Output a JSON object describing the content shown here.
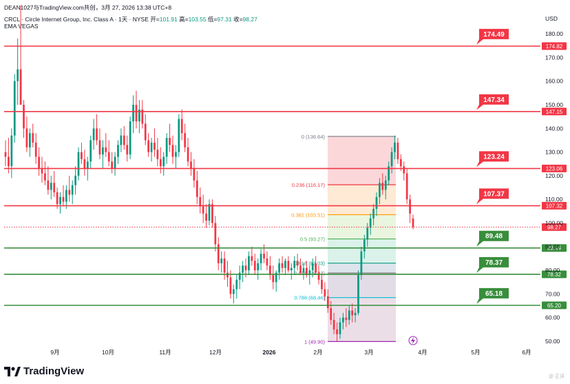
{
  "header": {
    "byline": "DEAN1027与TradingView.com共创，3月 27, 2026 13:38 UTC+8",
    "symbol": "CRCL · Circle Internet Group, Inc. Class A · 1天 · NYSE",
    "open_label": "开=",
    "open": "101.91",
    "high_label": "高=",
    "high": "103.55",
    "low_label": "低=",
    "low": "97.31",
    "close_label": "收=",
    "close": "98.27",
    "indicator": "EMA VEGAS",
    "currency": "USD"
  },
  "footer": {
    "brand": "TradingView",
    "watermark": "@ 正评"
  },
  "colors": {
    "resistance": "#f23645",
    "support": "#388e3c",
    "up": "#089981",
    "down": "#f23645",
    "price_line": "#f23645",
    "axis_text": "#131722"
  },
  "chart_data": {
    "type": "candlestick",
    "y_axis": {
      "range": [
        47,
        192
      ],
      "ticks": [
        "50.00",
        "60.00",
        "70.00",
        "80.00",
        "90.00",
        "100.00",
        "110.00",
        "120.00",
        "130.00",
        "140.00",
        "150.00",
        "160.00",
        "170.00",
        "180.00"
      ]
    },
    "x_axis": {
      "ticks": [
        "9月",
        "10月",
        "11月",
        "12月",
        "2026",
        "2月",
        "3月",
        "4月",
        "5月",
        "6月"
      ]
    },
    "current_price": {
      "value": 98.27,
      "label": "98.27"
    },
    "resistance_levels": [
      {
        "value": 174.82,
        "axis_label": "174.82",
        "callout": "174.49"
      },
      {
        "value": 147.15,
        "axis_label": "147.15",
        "callout": "147.34"
      },
      {
        "value": 123.06,
        "axis_label": "123.06",
        "callout": "123.24"
      },
      {
        "value": 107.32,
        "axis_label": "107.32",
        "callout": "107.37"
      }
    ],
    "support_levels": [
      {
        "value": 89.44,
        "axis_label": "89.44",
        "callout": "89.48"
      },
      {
        "value": 78.32,
        "axis_label": "78.32",
        "callout": "78.37"
      },
      {
        "value": 65.2,
        "axis_label": "65.20",
        "callout": "65.18"
      }
    ],
    "fibonacci": {
      "from_date": "2026-02-05",
      "to_date": "2026-03-19",
      "levels": [
        {
          "label": "0 (136.64)",
          "value": 136.64,
          "color": "#787b86",
          "fill": "#f9c9cd"
        },
        {
          "label": "0.236 (116.17)",
          "value": 116.17,
          "color": "#f23645",
          "fill": "#fde3c7"
        },
        {
          "label": "0.382 (103.51)",
          "value": 103.51,
          "color": "#ff9800",
          "fill": "#e1f1d3"
        },
        {
          "label": "0.5 (93.27)",
          "value": 93.27,
          "color": "#4caf50",
          "fill": "#cdeee3"
        },
        {
          "label": "0.618 (83.03)",
          "value": 83.03,
          "color": "#089981",
          "fill": "#d3dbe6"
        },
        {
          "label": "0.666 (78.87)",
          "value": 78.87,
          "color": "#7a7a7a",
          "fill": "#d8d0df"
        },
        {
          "label": "0.786 (68.46)",
          "value": 68.46,
          "color": "#00bcd4",
          "fill": "#e6d3df"
        },
        {
          "label": "1 (49.90)",
          "value": 49.9,
          "color": "#9c27b0",
          "fill": "none"
        }
      ]
    },
    "candles_ohlc": [
      [
        130,
        135,
        124,
        128
      ],
      [
        128,
        136,
        121,
        124
      ],
      [
        124,
        140,
        119,
        137
      ],
      [
        137,
        163,
        134,
        160
      ],
      [
        160,
        178,
        150,
        165
      ],
      [
        165,
        192,
        158,
        150
      ],
      [
        150,
        152,
        136,
        140
      ],
      [
        140,
        145,
        130,
        132
      ],
      [
        132,
        140,
        128,
        138
      ],
      [
        138,
        142,
        132,
        134
      ],
      [
        134,
        138,
        125,
        128
      ],
      [
        128,
        132,
        120,
        123
      ],
      [
        123,
        128,
        117,
        121
      ],
      [
        121,
        126,
        116,
        118
      ],
      [
        118,
        124,
        112,
        114
      ],
      [
        114,
        120,
        110,
        117
      ],
      [
        117,
        122,
        111,
        113
      ],
      [
        113,
        115,
        106,
        108
      ],
      [
        108,
        113,
        104,
        111
      ],
      [
        111,
        116,
        107,
        109
      ],
      [
        109,
        116,
        106,
        114
      ],
      [
        114,
        120,
        109,
        112
      ],
      [
        112,
        118,
        108,
        116
      ],
      [
        116,
        124,
        112,
        120
      ],
      [
        120,
        132,
        118,
        130
      ],
      [
        130,
        134,
        125,
        127
      ],
      [
        127,
        131,
        120,
        123
      ],
      [
        123,
        128,
        118,
        126
      ],
      [
        126,
        137,
        123,
        135
      ],
      [
        135,
        144,
        131,
        140
      ],
      [
        140,
        146,
        133,
        135
      ],
      [
        135,
        140,
        127,
        129
      ],
      [
        129,
        135,
        123,
        132
      ],
      [
        132,
        138,
        128,
        130
      ],
      [
        130,
        135,
        124,
        126
      ],
      [
        126,
        130,
        121,
        123
      ],
      [
        123,
        130,
        120,
        128
      ],
      [
        128,
        135,
        125,
        133
      ],
      [
        133,
        140,
        130,
        137
      ],
      [
        137,
        141,
        131,
        133
      ],
      [
        133,
        137,
        126,
        129
      ],
      [
        129,
        145,
        127,
        143
      ],
      [
        143,
        154,
        138,
        150
      ],
      [
        150,
        156,
        140,
        143
      ],
      [
        143,
        152,
        138,
        148
      ],
      [
        148,
        152,
        140,
        142
      ],
      [
        142,
        146,
        133,
        135
      ],
      [
        135,
        138,
        128,
        130
      ],
      [
        130,
        136,
        126,
        134
      ],
      [
        134,
        140,
        128,
        131
      ],
      [
        131,
        136,
        124,
        127
      ],
      [
        127,
        132,
        121,
        124
      ],
      [
        124,
        130,
        120,
        128
      ],
      [
        128,
        138,
        125,
        136
      ],
      [
        136,
        142,
        130,
        133
      ],
      [
        133,
        137,
        125,
        128
      ],
      [
        128,
        133,
        123,
        130
      ],
      [
        130,
        146,
        128,
        144
      ],
      [
        144,
        148,
        135,
        138
      ],
      [
        138,
        142,
        130,
        132
      ],
      [
        132,
        136,
        124,
        126
      ],
      [
        126,
        130,
        120,
        123
      ],
      [
        123,
        127,
        115,
        118
      ],
      [
        118,
        122,
        108,
        111
      ],
      [
        111,
        115,
        104,
        107
      ],
      [
        107,
        112,
        100,
        104
      ],
      [
        104,
        108,
        98,
        101
      ],
      [
        101,
        110,
        99,
        108
      ],
      [
        108,
        110,
        98,
        100
      ],
      [
        100,
        103,
        88,
        91
      ],
      [
        91,
        94,
        80,
        83
      ],
      [
        83,
        88,
        79,
        85
      ],
      [
        85,
        88,
        76,
        79
      ],
      [
        79,
        84,
        73,
        77
      ],
      [
        77,
        80,
        68,
        70
      ],
      [
        70,
        74,
        66,
        72
      ],
      [
        72,
        78,
        68,
        76
      ],
      [
        76,
        82,
        72,
        79
      ],
      [
        79,
        84,
        75,
        82
      ],
      [
        82,
        85,
        77,
        80
      ],
      [
        80,
        88,
        78,
        86
      ],
      [
        86,
        90,
        82,
        84
      ],
      [
        84,
        87,
        78,
        80
      ],
      [
        80,
        85,
        76,
        83
      ],
      [
        83,
        89,
        80,
        87
      ],
      [
        87,
        91,
        83,
        85
      ],
      [
        85,
        88,
        80,
        82
      ],
      [
        82,
        86,
        76,
        78
      ],
      [
        78,
        82,
        72,
        75
      ],
      [
        75,
        80,
        71,
        79
      ],
      [
        79,
        85,
        76,
        83
      ],
      [
        83,
        86,
        79,
        81
      ],
      [
        81,
        85,
        78,
        84
      ],
      [
        84,
        86,
        79,
        80
      ],
      [
        80,
        83,
        76,
        81
      ],
      [
        81,
        86,
        78,
        84
      ],
      [
        84,
        87,
        80,
        82
      ],
      [
        82,
        85,
        78,
        79
      ],
      [
        79,
        83,
        76,
        81
      ],
      [
        81,
        84,
        77,
        78
      ],
      [
        78,
        82,
        74,
        80
      ],
      [
        80,
        85,
        77,
        83
      ],
      [
        83,
        86,
        78,
        79
      ],
      [
        79,
        82,
        74,
        76
      ],
      [
        76,
        79,
        70,
        72
      ],
      [
        72,
        75,
        67,
        69
      ],
      [
        69,
        72,
        62,
        64
      ],
      [
        64,
        67,
        57,
        59
      ],
      [
        59,
        62,
        53,
        55
      ],
      [
        55,
        58,
        50,
        53
      ],
      [
        53,
        60,
        51,
        58
      ],
      [
        58,
        62,
        55,
        60
      ],
      [
        60,
        64,
        56,
        59
      ],
      [
        59,
        65,
        57,
        63
      ],
      [
        63,
        66,
        58,
        61
      ],
      [
        61,
        64,
        58,
        62
      ],
      [
        62,
        80,
        61,
        78
      ],
      [
        78,
        90,
        76,
        88
      ],
      [
        88,
        95,
        85,
        93
      ],
      [
        93,
        100,
        90,
        98
      ],
      [
        98,
        104,
        95,
        102
      ],
      [
        102,
        108,
        99,
        106
      ],
      [
        106,
        113,
        103,
        111
      ],
      [
        111,
        119,
        108,
        117
      ],
      [
        117,
        121,
        112,
        114
      ],
      [
        114,
        120,
        110,
        118
      ],
      [
        118,
        126,
        116,
        124
      ],
      [
        124,
        132,
        121,
        130
      ],
      [
        130,
        137,
        127,
        134
      ],
      [
        134,
        136,
        125,
        127
      ],
      [
        127,
        129,
        122,
        124
      ],
      [
        124,
        126,
        118,
        121
      ],
      [
        121,
        123,
        108,
        110
      ],
      [
        110,
        112,
        100,
        104
      ],
      [
        101.91,
        103.55,
        97.31,
        98.27
      ]
    ]
  }
}
